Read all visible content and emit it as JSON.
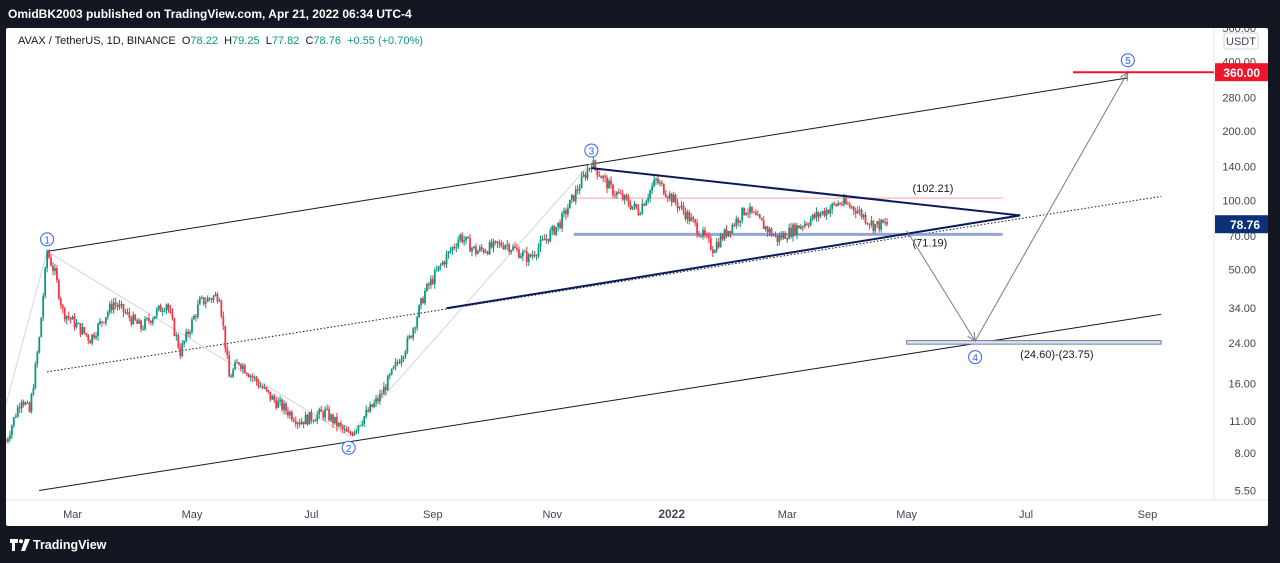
{
  "publisher_line": "OmidBK2003 published on TradingView.com, Apr 21, 2022 06:34 UTC-4",
  "brand": "TradingView",
  "legend": {
    "symbol": "AVAX / TetherUS, 1D, BINANCE",
    "open_label": "O",
    "open": "78.22",
    "high_label": "H",
    "high": "79.25",
    "low_label": "L",
    "low": "77.82",
    "close_label": "C",
    "close": "78.76",
    "change": "+0.55 (+0.70%)"
  },
  "chart_data": {
    "type": "line",
    "title": "AVAX / TetherUS, 1D, BINANCE",
    "scale": "log",
    "currency": "USDT",
    "ylim": [
      5,
      560
    ],
    "x_range": [
      "2021-01-26",
      "2022-10-05"
    ],
    "x_ticks": [
      {
        "label": "Mar",
        "date": "2021-03-01"
      },
      {
        "label": "May",
        "date": "2021-05-01"
      },
      {
        "label": "Jul",
        "date": "2021-07-01"
      },
      {
        "label": "Sep",
        "date": "2021-09-01"
      },
      {
        "label": "Nov",
        "date": "2021-11-01"
      },
      {
        "label": "2022",
        "date": "2022-01-01"
      },
      {
        "label": "Mar",
        "date": "2022-03-01"
      },
      {
        "label": "May",
        "date": "2022-05-01"
      },
      {
        "label": "Jul",
        "date": "2022-07-01"
      },
      {
        "label": "Sep",
        "date": "2022-09-01"
      }
    ],
    "y_ticks": [
      "560.00",
      "400.00",
      "280.00",
      "200.00",
      "140.00",
      "100.00",
      "70.00",
      "50.00",
      "34.00",
      "24.00",
      "16.00",
      "11.00",
      "8.00",
      "5.50"
    ],
    "price_path": [
      {
        "date": "2021-01-26",
        "value": 9
      },
      {
        "date": "2021-02-03",
        "value": 14
      },
      {
        "date": "2021-02-07",
        "value": 12
      },
      {
        "date": "2021-02-12",
        "value": 25
      },
      {
        "date": "2021-02-16",
        "value": 60
      },
      {
        "date": "2021-02-20",
        "value": 48
      },
      {
        "date": "2021-02-24",
        "value": 33
      },
      {
        "date": "2021-03-10",
        "value": 25
      },
      {
        "date": "2021-03-22",
        "value": 36
      },
      {
        "date": "2021-04-05",
        "value": 28
      },
      {
        "date": "2021-04-18",
        "value": 36
      },
      {
        "date": "2021-04-25",
        "value": 22
      },
      {
        "date": "2021-05-05",
        "value": 36
      },
      {
        "date": "2021-05-15",
        "value": 39
      },
      {
        "date": "2021-05-20",
        "value": 17
      },
      {
        "date": "2021-05-25",
        "value": 20
      },
      {
        "date": "2021-06-10",
        "value": 14
      },
      {
        "date": "2021-06-25",
        "value": 11
      },
      {
        "date": "2021-07-08",
        "value": 12
      },
      {
        "date": "2021-07-20",
        "value": 9.5
      },
      {
        "date": "2021-08-05",
        "value": 14
      },
      {
        "date": "2021-08-20",
        "value": 25
      },
      {
        "date": "2021-08-28",
        "value": 40
      },
      {
        "date": "2021-09-05",
        "value": 52
      },
      {
        "date": "2021-09-15",
        "value": 70
      },
      {
        "date": "2021-09-23",
        "value": 60
      },
      {
        "date": "2021-10-08",
        "value": 65
      },
      {
        "date": "2021-10-20",
        "value": 56
      },
      {
        "date": "2021-11-05",
        "value": 80
      },
      {
        "date": "2021-11-21",
        "value": 146
      },
      {
        "date": "2021-12-01",
        "value": 112
      },
      {
        "date": "2021-12-15",
        "value": 90
      },
      {
        "date": "2021-12-24",
        "value": 122
      },
      {
        "date": "2022-01-08",
        "value": 88
      },
      {
        "date": "2022-01-22",
        "value": 62
      },
      {
        "date": "2022-02-08",
        "value": 92
      },
      {
        "date": "2022-02-24",
        "value": 68
      },
      {
        "date": "2022-03-10",
        "value": 80
      },
      {
        "date": "2022-03-28",
        "value": 98
      },
      {
        "date": "2022-04-05",
        "value": 92
      },
      {
        "date": "2022-04-14",
        "value": 78
      },
      {
        "date": "2022-04-21",
        "value": 78.76
      }
    ],
    "current_price": {
      "label": "78.76",
      "value": 78.76
    },
    "target": {
      "label": "360.00",
      "value": 360
    },
    "levels": [
      {
        "label": "(102.21)",
        "value": 102.21
      },
      {
        "label": "(71.19)",
        "value": 71.19
      }
    ],
    "target_zone": {
      "label": "(24.60)-(23.75)",
      "from": 24.6,
      "to": 23.75
    },
    "wave_labels": [
      {
        "label": "1",
        "date": "2021-02-16",
        "value": 60
      },
      {
        "label": "2",
        "date": "2021-07-20",
        "value": 9.5
      },
      {
        "label": "3",
        "date": "2021-11-21",
        "value": 146
      },
      {
        "label": "4",
        "date": "2022-06-05",
        "value": 24
      },
      {
        "label": "5",
        "date": "2022-08-22",
        "value": 360
      }
    ],
    "projection": [
      {
        "date": "2022-04-21",
        "value": 78.76
      },
      {
        "date": "2022-05-01",
        "value": 74
      },
      {
        "date": "2022-06-05",
        "value": 24.5
      },
      {
        "date": "2022-08-22",
        "value": 360
      }
    ],
    "channel": {
      "upper": [
        {
          "date": "2021-02-16",
          "value": 60
        },
        {
          "date": "2022-08-22",
          "value": 340
        }
      ],
      "mid": [
        {
          "date": "2021-02-16",
          "value": 18
        },
        {
          "date": "2022-09-08",
          "value": 104
        }
      ],
      "lower": [
        {
          "date": "2021-02-16",
          "value": 5.5
        },
        {
          "date": "2022-09-08",
          "value": 32
        }
      ]
    },
    "triangle": {
      "upper": [
        {
          "date": "2021-11-21",
          "value": 138
        },
        {
          "date": "2022-06-28",
          "value": 86
        }
      ],
      "lower": [
        {
          "date": "2021-09-08",
          "value": 34
        },
        {
          "date": "2022-06-28",
          "value": 86
        }
      ]
    },
    "colors": {
      "up": "#089981",
      "down": "#f23645",
      "lines": "#131722",
      "triangle": "#0c1a5c",
      "wave_labels": "#2962ff",
      "target": "#f0162a",
      "current": "#0c3178"
    }
  }
}
